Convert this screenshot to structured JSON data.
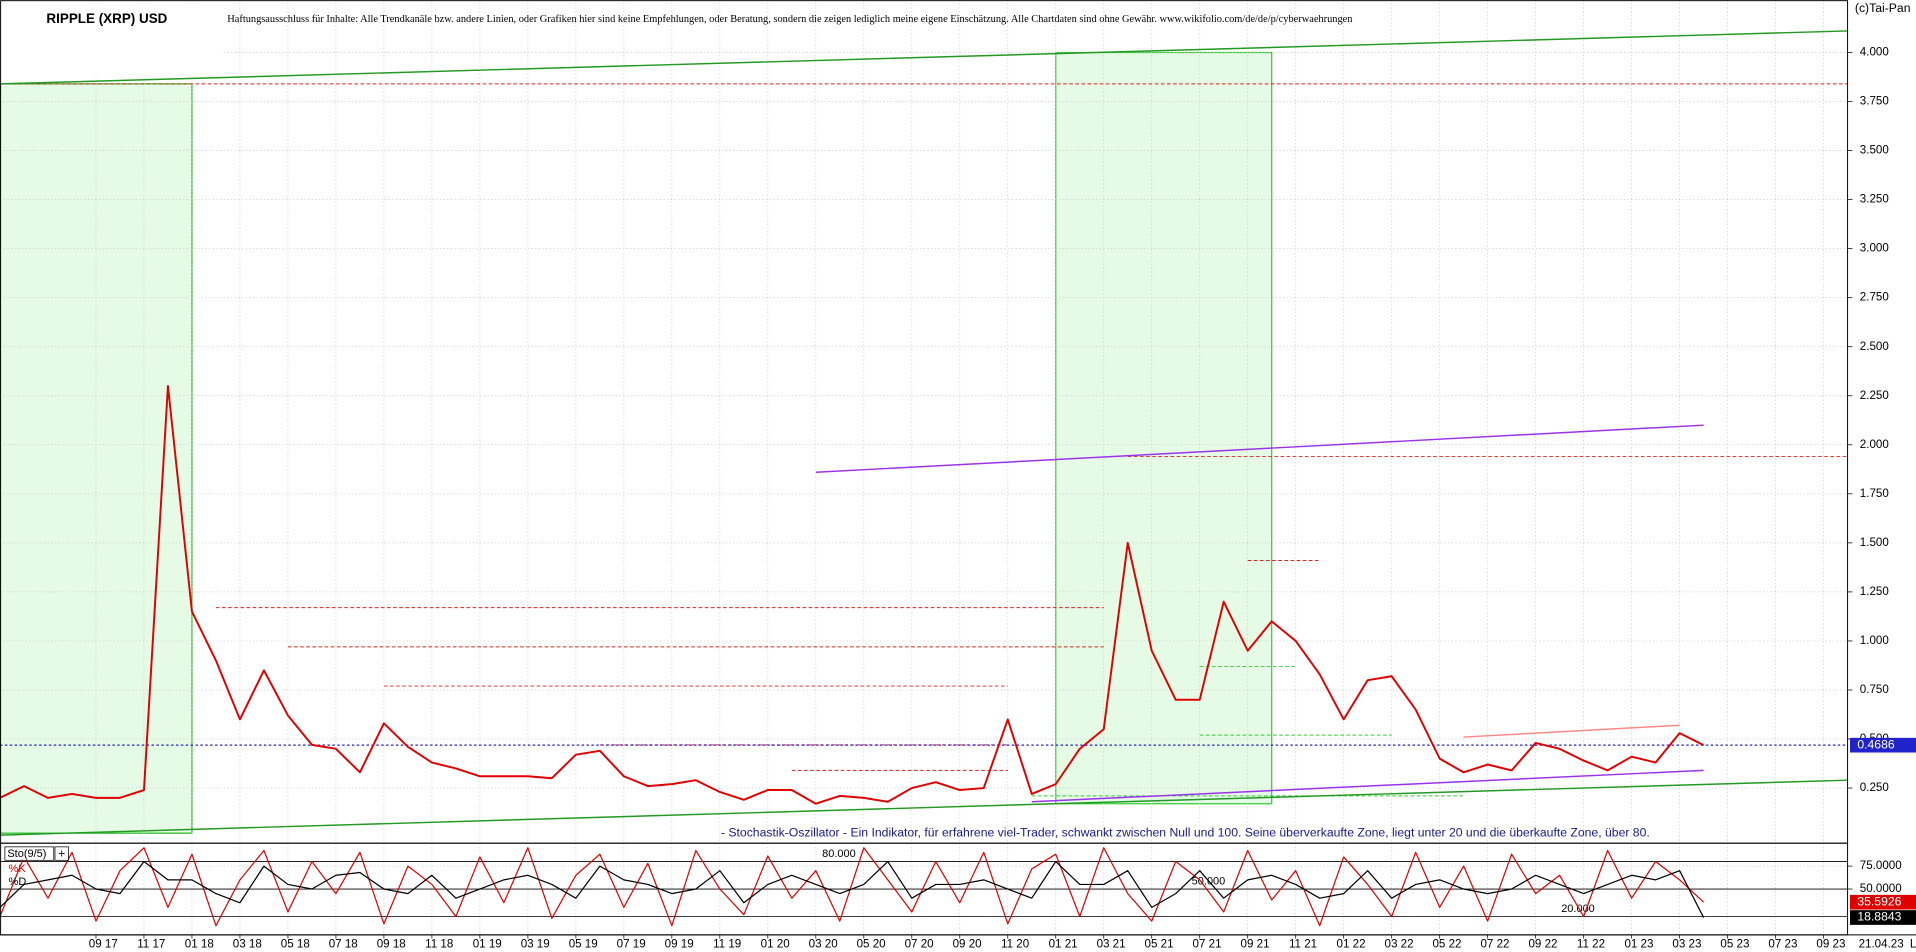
{
  "chart_data": [
    {
      "type": "line",
      "title": "RIPPLE (XRP) USD",
      "subtitle": "Haftungsausschluss für Inhalte: Alle Trendkanäle bzw. andere Linien, oder Grafiken hier sind keine Empfehlungen, oder Beratung, sondern die zeigen lediglich meine eigene Einschätzung. Alle Chartdaten sind ohne Gewähr. www.wikifolio.com/de/de/p/cyberwaehrungen",
      "source": "(c)Tai-Pan",
      "date": "21.04.23",
      "scale_label": "L",
      "x": [
        "2017-05",
        "2017-06",
        "2017-07",
        "2017-08",
        "2017-09",
        "2017-10",
        "2017-11",
        "2017-12",
        "2018-01",
        "2018-02",
        "2018-03",
        "2018-04",
        "2018-05",
        "2018-06",
        "2018-07",
        "2018-08",
        "2018-09",
        "2018-10",
        "2018-11",
        "2018-12",
        "2019-01",
        "2019-02",
        "2019-03",
        "2019-04",
        "2019-05",
        "2019-06",
        "2019-07",
        "2019-08",
        "2019-09",
        "2019-10",
        "2019-11",
        "2019-12",
        "2020-01",
        "2020-02",
        "2020-03",
        "2020-04",
        "2020-05",
        "2020-06",
        "2020-07",
        "2020-08",
        "2020-09",
        "2020-10",
        "2020-11",
        "2020-12",
        "2021-01",
        "2021-02",
        "2021-03",
        "2021-04",
        "2021-05",
        "2021-06",
        "2021-07",
        "2021-08",
        "2021-09",
        "2021-10",
        "2021-11",
        "2021-12",
        "2022-01",
        "2022-02",
        "2022-03",
        "2022-04",
        "2022-05",
        "2022-06",
        "2022-07",
        "2022-08",
        "2022-09",
        "2022-10",
        "2022-11",
        "2022-12",
        "2023-01",
        "2023-02",
        "2023-03",
        "2023-04"
      ],
      "series": [
        {
          "name": "RIPPLE (XRP) USD",
          "color": "#e00000",
          "values": [
            0.2,
            0.26,
            0.2,
            0.22,
            0.2,
            0.2,
            0.24,
            2.3,
            1.15,
            0.9,
            0.6,
            0.85,
            0.62,
            0.47,
            0.45,
            0.33,
            0.58,
            0.46,
            0.38,
            0.35,
            0.31,
            0.31,
            0.31,
            0.3,
            0.42,
            0.44,
            0.31,
            0.26,
            0.27,
            0.29,
            0.23,
            0.19,
            0.24,
            0.24,
            0.17,
            0.21,
            0.2,
            0.18,
            0.25,
            0.28,
            0.24,
            0.25,
            0.6,
            0.22,
            0.27,
            0.45,
            0.55,
            1.5,
            0.95,
            0.7,
            0.7,
            1.2,
            0.95,
            1.1,
            1.0,
            0.83,
            0.6,
            0.8,
            0.82,
            0.65,
            0.4,
            0.33,
            0.37,
            0.34,
            0.48,
            0.45,
            0.39,
            0.34,
            0.41,
            0.38,
            0.53,
            0.4686
          ]
        }
      ],
      "current_color": "#2222cc",
      "xlim": [
        "2017-05",
        "2023-10"
      ],
      "xticks": [
        {
          "value": "2017-09",
          "label": "09 17"
        },
        {
          "value": "2017-11",
          "label": "11 17"
        },
        {
          "value": "2018-01",
          "label": "01 18"
        },
        {
          "value": "2018-03",
          "label": "03 18"
        },
        {
          "value": "2018-05",
          "label": "05 18"
        },
        {
          "value": "2018-07",
          "label": "07 18"
        },
        {
          "value": "2018-09",
          "label": "09 18"
        },
        {
          "value": "2018-11",
          "label": "11 18"
        },
        {
          "value": "2019-01",
          "label": "01 19"
        },
        {
          "value": "2019-03",
          "label": "03 19"
        },
        {
          "value": "2019-05",
          "label": "05 19"
        },
        {
          "value": "2019-07",
          "label": "07 19"
        },
        {
          "value": "2019-09",
          "label": "09 19"
        },
        {
          "value": "2019-11",
          "label": "11 19"
        },
        {
          "value": "2020-01",
          "label": "01 20"
        },
        {
          "value": "2020-03",
          "label": "03 20"
        },
        {
          "value": "2020-05",
          "label": "05 20"
        },
        {
          "value": "2020-07",
          "label": "07 20"
        },
        {
          "value": "2020-09",
          "label": "09 20"
        },
        {
          "value": "2020-11",
          "label": "11 20"
        },
        {
          "value": "2021-01",
          "label": "01 21"
        },
        {
          "value": "2021-03",
          "label": "03 21"
        },
        {
          "value": "2021-05",
          "label": "05 21"
        },
        {
          "value": "2021-07",
          "label": "07 21"
        },
        {
          "value": "2021-09",
          "label": "09 21"
        },
        {
          "value": "2021-11",
          "label": "11 21"
        },
        {
          "value": "2022-01",
          "label": "01 22"
        },
        {
          "value": "2022-03",
          "label": "03 22"
        },
        {
          "value": "2022-05",
          "label": "05 22"
        },
        {
          "value": "2022-07",
          "label": "07 22"
        },
        {
          "value": "2022-09",
          "label": "09 22"
        },
        {
          "value": "2022-11",
          "label": "11 22"
        },
        {
          "value": "2023-01",
          "label": "01 23"
        },
        {
          "value": "2023-03",
          "label": "03 23"
        },
        {
          "value": "2023-05",
          "label": "05 23"
        },
        {
          "value": "2023-07",
          "label": "07 23"
        },
        {
          "value": "2023-09",
          "label": "09 23"
        }
      ],
      "ylim": [
        0,
        4.25
      ],
      "yticks": [
        {
          "value": 0.25,
          "label": "0.250"
        },
        {
          "value": 0.5,
          "label": "0.500"
        },
        {
          "value": 0.75,
          "label": "0.750"
        },
        {
          "value": 1.0,
          "label": "1.000"
        },
        {
          "value": 1.25,
          "label": "1.250"
        },
        {
          "value": 1.5,
          "label": "1.500"
        },
        {
          "value": 1.75,
          "label": "1.750"
        },
        {
          "value": 2.0,
          "label": "2.000"
        },
        {
          "value": 2.25,
          "label": "2.250"
        },
        {
          "value": 2.5,
          "label": "2.500"
        },
        {
          "value": 2.75,
          "label": "2.750"
        },
        {
          "value": 3.0,
          "label": "3.000"
        },
        {
          "value": 3.25,
          "label": "3.250"
        },
        {
          "value": 3.5,
          "label": "3.500"
        },
        {
          "value": 3.75,
          "label": "3.750"
        },
        {
          "value": 4.0,
          "label": "4.000"
        }
      ],
      "grid": true,
      "zones": [
        {
          "from": "2017-05",
          "to": "2018-01",
          "top": 3.84,
          "bottom": 0.02,
          "color": "#e6fbe6",
          "edge": "#22bb22"
        },
        {
          "from": "2021-01",
          "to": "2021-10",
          "top": 4.0,
          "bottom": 0.17,
          "color": "#e6fbe6",
          "edge": "#33cc33"
        }
      ],
      "trendlines": [
        {
          "color": "#229922",
          "points": [
            [
              "2017-05",
              0.01
            ],
            [
              "2023-10",
              0.29
            ]
          ]
        },
        {
          "color": "#229922",
          "points": [
            [
              "2017-05",
              3.84
            ],
            [
              "2023-10",
              4.11
            ]
          ]
        },
        {
          "color": "#9933ee",
          "points": [
            [
              "2020-03",
              1.86
            ],
            [
              "2023-04",
              2.1
            ]
          ]
        },
        {
          "color": "#9933ee",
          "points": [
            [
              "2020-12",
              0.18
            ],
            [
              "2023-04",
              0.34
            ]
          ]
        },
        {
          "color": "#ff8888",
          "points": [
            [
              "2022-06",
              0.51
            ],
            [
              "2023-03",
              0.57
            ]
          ]
        }
      ],
      "levels": [
        {
          "value": 3.84,
          "from": "2017-05",
          "to": "2023-10",
          "color": "#dd2222"
        },
        {
          "value": 1.94,
          "from": "2021-04",
          "to": "2023-10",
          "color": "#dd2222"
        },
        {
          "value": 1.17,
          "from": "2018-02",
          "to": "2021-03",
          "color": "#dd2222"
        },
        {
          "value": 0.97,
          "from": "2018-05",
          "to": "2021-03",
          "color": "#dd2222"
        },
        {
          "value": 0.77,
          "from": "2018-09",
          "to": "2020-11",
          "color": "#dd2222"
        },
        {
          "value": 0.47,
          "from": "2019-06",
          "to": "2020-11",
          "color": "#dd2222"
        },
        {
          "value": 0.34,
          "from": "2020-02",
          "to": "2020-11",
          "color": "#dd2222"
        },
        {
          "value": 1.41,
          "from": "2021-09",
          "to": "2021-12",
          "color": "#dd2222"
        },
        {
          "value": 0.87,
          "from": "2021-07",
          "to": "2021-11",
          "color": "#33cc33"
        },
        {
          "value": 0.52,
          "from": "2021-07",
          "to": "2022-03",
          "color": "#33cc33"
        },
        {
          "value": 0.21,
          "from": "2020-12",
          "to": "2022-06",
          "color": "#33cc33"
        }
      ]
    },
    {
      "type": "line",
      "title": "Sto(9/5)",
      "annotation": "- Stochastik-Oszillator - Ein Indikator, für erfahrene viel-Trader, schwankt zwischen Null und 100. Seine überverkaufte Zone, liegt unter 20 und die überkaufte Zone, über 80.",
      "x": [
        "2017-05",
        "2017-06",
        "2017-07",
        "2017-08",
        "2017-09",
        "2017-10",
        "2017-11",
        "2017-12",
        "2018-01",
        "2018-02",
        "2018-03",
        "2018-04",
        "2018-05",
        "2018-06",
        "2018-07",
        "2018-08",
        "2018-09",
        "2018-10",
        "2018-11",
        "2018-12",
        "2019-01",
        "2019-02",
        "2019-03",
        "2019-04",
        "2019-05",
        "2019-06",
        "2019-07",
        "2019-08",
        "2019-09",
        "2019-10",
        "2019-11",
        "2019-12",
        "2020-01",
        "2020-02",
        "2020-03",
        "2020-04",
        "2020-05",
        "2020-06",
        "2020-07",
        "2020-08",
        "2020-09",
        "2020-10",
        "2020-11",
        "2020-12",
        "2021-01",
        "2021-02",
        "2021-03",
        "2021-04",
        "2021-05",
        "2021-06",
        "2021-07",
        "2021-08",
        "2021-09",
        "2021-10",
        "2021-11",
        "2021-12",
        "2022-01",
        "2022-02",
        "2022-03",
        "2022-04",
        "2022-05",
        "2022-06",
        "2022-07",
        "2022-08",
        "2022-09",
        "2022-10",
        "2022-11",
        "2022-12",
        "2023-01",
        "2023-02",
        "2023-03",
        "2023-04"
      ],
      "series": [
        {
          "name": "%K",
          "color": "#e00000",
          "values": [
            20,
            85,
            40,
            90,
            15,
            70,
            95,
            30,
            88,
            10,
            60,
            92,
            25,
            80,
            45,
            90,
            12,
            75,
            55,
            20,
            85,
            35,
            95,
            18,
            65,
            88,
            30,
            78,
            10,
            92,
            50,
            22,
            86,
            40,
            70,
            15,
            95,
            60,
            25,
            80,
            35,
            90,
            12,
            72,
            88,
            20,
            95,
            45,
            15,
            80,
            60,
            25,
            92,
            38,
            70,
            10,
            85,
            55,
            20,
            90,
            30,
            75,
            15,
            88,
            45,
            65,
            20,
            92,
            40,
            80,
            60,
            35.5926
          ]
        },
        {
          "name": "%D",
          "color": "#000000",
          "values": [
            30,
            55,
            60,
            65,
            50,
            45,
            80,
            60,
            60,
            45,
            35,
            75,
            55,
            50,
            65,
            68,
            50,
            45,
            65,
            40,
            50,
            60,
            65,
            55,
            40,
            75,
            60,
            55,
            45,
            50,
            70,
            35,
            55,
            65,
            55,
            45,
            55,
            80,
            40,
            55,
            55,
            60,
            50,
            40,
            80,
            55,
            55,
            70,
            30,
            45,
            70,
            40,
            60,
            65,
            55,
            40,
            45,
            70,
            40,
            55,
            60,
            50,
            45,
            50,
            65,
            55,
            45,
            55,
            65,
            60,
            70,
            18.8843
          ]
        }
      ],
      "xlim": [
        "2017-05",
        "2023-10"
      ],
      "ylim": [
        0,
        100
      ],
      "yticks": [
        {
          "value": 75,
          "label": "75.0000"
        },
        {
          "value": 50,
          "label": "50.0000"
        }
      ],
      "levels": [
        {
          "value": 80,
          "label": "80.000"
        },
        {
          "value": 50,
          "label": "50.000"
        },
        {
          "value": 20,
          "label": "20.000"
        }
      ],
      "grid": true
    }
  ]
}
